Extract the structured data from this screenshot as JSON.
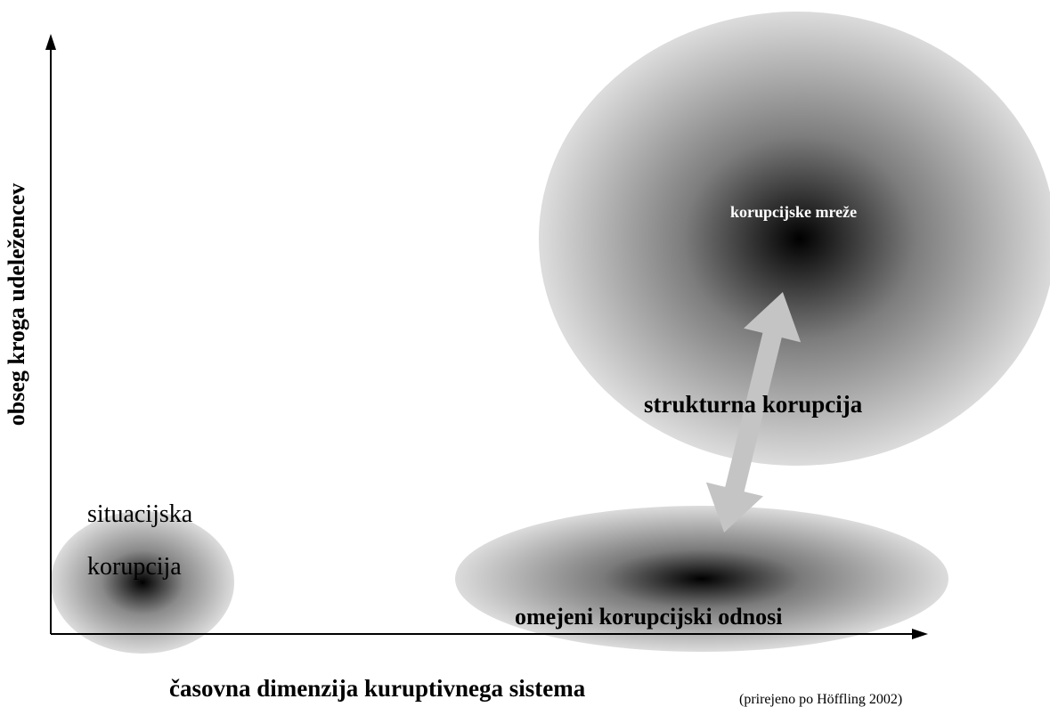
{
  "axes": {
    "y_label": "obseg kroga udeležencev",
    "x_label": "časovna dimenzija kuruptivnega sistema"
  },
  "regions": [
    {
      "label_lines": [
        "situacijska",
        "korupcija"
      ]
    },
    {
      "label": "omejeni korupcijski odnosi"
    },
    {
      "label": "korupcijske mreže"
    }
  ],
  "arrow_label": "strukturna korupcija",
  "source": "(prirejeno po Höffling 2002)"
}
